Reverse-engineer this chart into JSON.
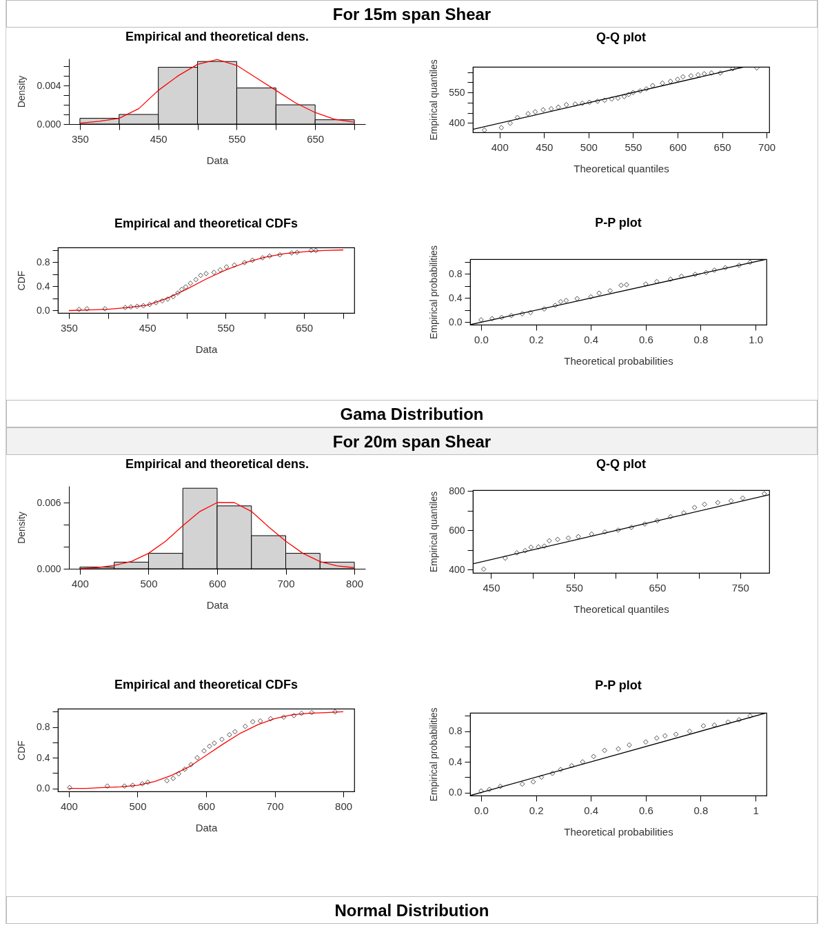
{
  "chart_data": [
    {
      "type": "histogram",
      "title": "Empirical and theoretical dens.",
      "xlabel": "Data",
      "ylabel": "Density",
      "annotations": [
        "For 15m span Shear"
      ],
      "xlim": [
        336,
        714
      ],
      "ylim": [
        0,
        0.0068
      ],
      "xticks": [
        350,
        {
          "value": 400,
          "label": null
        },
        450,
        {
          "value": 500,
          "label": null
        },
        550,
        {
          "value": 600,
          "label": null
        },
        650,
        {
          "value": 700,
          "label": null
        }
      ],
      "yticks": [
        {
          "value": 0,
          "label": "0.000"
        },
        {
          "value": 0.001,
          "label": null
        },
        {
          "value": 0.002,
          "label": null
        },
        {
          "value": 0.003,
          "label": null
        },
        0.004,
        {
          "value": 0.005,
          "label": null
        },
        {
          "value": 0.006,
          "label": null
        }
      ],
      "series": [
        {
          "type": "histogram",
          "color": "#d3d3d3",
          "bins": [
            350,
            400,
            450,
            500,
            550,
            600,
            650,
            700
          ],
          "values": [
            0.0006,
            0.001,
            0.0059,
            0.0065,
            0.00375,
            0.002,
            0.00045
          ]
        },
        {
          "type": "line",
          "color": "#ff0000",
          "x": [
            350,
            375,
            400,
            425,
            450,
            475,
            500,
            525,
            550,
            575,
            600,
            625,
            650,
            675,
            700
          ],
          "values": [
            0.0001,
            0.0003,
            0.0006,
            0.0016,
            0.0035,
            0.005,
            0.0062,
            0.0067,
            0.0061,
            0.0048,
            0.0035,
            0.0022,
            0.0012,
            0.0005,
            0.0002
          ]
        }
      ]
    },
    {
      "type": "scatter",
      "title": "Q-Q plot",
      "xlabel": "Theoretical quantiles",
      "ylabel": "Empirical quantiles",
      "xlim": [
        370,
        703
      ],
      "ylim": [
        354,
        676
      ],
      "xticks": [
        400,
        450,
        500,
        550,
        600,
        650,
        700
      ],
      "yticks": [
        400,
        {
          "value": 450,
          "label": null
        },
        {
          "value": 500,
          "label": null
        },
        550,
        {
          "value": 600,
          "label": null
        },
        {
          "value": 650,
          "label": null
        }
      ],
      "series": [
        {
          "type": "scatter",
          "marker": "diamond",
          "color": "#000000",
          "x": [
            383,
            402,
            412,
            420,
            432,
            440,
            449,
            458,
            466,
            475,
            485,
            493,
            501,
            510,
            518,
            526,
            533,
            540,
            545,
            550,
            558,
            565,
            572,
            583,
            592,
            600,
            606,
            615,
            623,
            630,
            638,
            648,
            662,
            689
          ],
          "values": [
            365,
            377,
            399,
            427,
            446,
            455,
            465,
            470,
            478,
            490,
            493,
            497,
            502,
            507,
            512,
            518,
            522,
            530,
            540,
            550,
            558,
            568,
            584,
            596,
            605,
            615,
            627,
            632,
            637,
            642,
            646,
            646,
            667,
            671
          ]
        },
        {
          "type": "line",
          "color": "#000000",
          "x": [
            370,
            675
          ],
          "values": [
            369,
            676
          ]
        }
      ]
    },
    {
      "type": "scatter",
      "title": "Empirical and theoretical CDFs",
      "xlabel": "Data",
      "ylabel": "CDF",
      "xlim": [
        336,
        714
      ],
      "ylim": [
        -0.04,
        1.04
      ],
      "xticks": [
        350,
        {
          "value": 400,
          "label": null
        },
        450,
        {
          "value": 500,
          "label": null
        },
        550,
        {
          "value": 600,
          "label": null
        },
        650,
        {
          "value": 700,
          "label": null
        }
      ],
      "yticks": [
        {
          "value": 0,
          "label": "0.0"
        },
        {
          "value": 0.2,
          "label": null
        },
        0.4,
        {
          "value": 0.6,
          "label": null
        },
        0.8,
        {
          "value": 1,
          "label": null
        }
      ],
      "series": [
        {
          "type": "line",
          "color": "#ff0000",
          "x": [
            350,
            375,
            400,
            425,
            450,
            475,
            500,
            525,
            550,
            575,
            600,
            625,
            650,
            675,
            700
          ],
          "values": [
            0,
            0.01,
            0.02,
            0.05,
            0.09,
            0.2,
            0.35,
            0.52,
            0.67,
            0.79,
            0.88,
            0.94,
            0.97,
            0.99,
            1
          ]
        },
        {
          "type": "scatter",
          "marker": "diamond",
          "color": "#000000",
          "x": [
            363,
            373,
            396,
            422,
            429,
            437,
            445,
            453,
            461,
            469,
            476,
            483,
            489,
            494,
            499,
            505,
            512,
            518,
            525,
            535,
            543,
            551,
            561,
            574,
            584,
            597,
            606,
            619,
            634,
            641,
            659,
            665
          ],
          "values": [
            0.02,
            0.03,
            0.03,
            0.05,
            0.06,
            0.07,
            0.08,
            0.1,
            0.13,
            0.16,
            0.19,
            0.23,
            0.29,
            0.35,
            0.39,
            0.45,
            0.51,
            0.58,
            0.61,
            0.63,
            0.67,
            0.72,
            0.75,
            0.79,
            0.83,
            0.87,
            0.9,
            0.92,
            0.95,
            0.96,
            0.99,
            0.99
          ]
        }
      ]
    },
    {
      "type": "scatter",
      "title": "P-P plot",
      "xlabel": "Theoretical probabilities",
      "ylabel": "Empirical probabilities",
      "annotations": [
        "Gama Distribution"
      ],
      "xlim": [
        -0.04,
        1.04
      ],
      "ylim": [
        -0.04,
        1.04
      ],
      "xticks": [
        {
          "value": 0,
          "label": "0.0"
        },
        0.2,
        0.4,
        0.6,
        0.8,
        {
          "value": 1,
          "label": "1.0"
        }
      ],
      "yticks": [
        {
          "value": 0,
          "label": "0.0"
        },
        {
          "value": 0.2,
          "label": null
        },
        0.4,
        {
          "value": 0.6,
          "label": null
        },
        0.8,
        {
          "value": 1,
          "label": null
        }
      ],
      "series": [
        {
          "type": "scatter",
          "marker": "diamond",
          "color": "#000000",
          "x": [
            0,
            0.04,
            0.075,
            0.11,
            0.15,
            0.18,
            0.23,
            0.27,
            0.29,
            0.31,
            0.35,
            0.4,
            0.43,
            0.47,
            0.51,
            0.53,
            0.6,
            0.64,
            0.69,
            0.73,
            0.78,
            0.82,
            0.85,
            0.89,
            0.94,
            0.98
          ],
          "values": [
            0.04,
            0.06,
            0.08,
            0.11,
            0.14,
            0.16,
            0.22,
            0.28,
            0.34,
            0.36,
            0.39,
            0.42,
            0.48,
            0.52,
            0.61,
            0.62,
            0.63,
            0.67,
            0.71,
            0.76,
            0.79,
            0.82,
            0.86,
            0.9,
            0.94,
            0.99
          ]
        },
        {
          "type": "line",
          "color": "#000000",
          "x": [
            -0.04,
            1.04
          ],
          "values": [
            -0.04,
            1.04
          ]
        }
      ]
    },
    {
      "type": "histogram",
      "title": "Empirical and theoretical dens.",
      "xlabel": "Data",
      "ylabel": "Density",
      "annotations": [
        "For 20m span Shear"
      ],
      "xlim": [
        384,
        816
      ],
      "ylim": [
        0,
        0.0075
      ],
      "xticks": [
        400,
        500,
        600,
        700,
        800
      ],
      "yticks": [
        {
          "value": 0,
          "label": "0.000"
        },
        {
          "value": 0.002,
          "label": null
        },
        {
          "value": 0.004,
          "label": null
        },
        0.006
      ],
      "series": [
        {
          "type": "histogram",
          "color": "#d3d3d3",
          "bins": [
            400,
            450,
            500,
            550,
            600,
            650,
            700,
            750,
            800
          ],
          "values": [
            0.00015,
            0.0006,
            0.0014,
            0.0073,
            0.0057,
            0.003,
            0.0014,
            0.0006
          ]
        },
        {
          "type": "line",
          "color": "#ff0000",
          "x": [
            400,
            425,
            450,
            475,
            500,
            525,
            550,
            575,
            600,
            625,
            650,
            675,
            700,
            725,
            750,
            775,
            800
          ],
          "values": [
            0,
            0.0001,
            0.0003,
            0.00066,
            0.0014,
            0.0025,
            0.0039,
            0.0052,
            0.006,
            0.006,
            0.0052,
            0.0038,
            0.0025,
            0.0014,
            0.00065,
            0.00026,
            0.0001
          ]
        }
      ]
    },
    {
      "type": "scatter",
      "title": "Q-Q plot",
      "xlabel": "Theoretical quantiles",
      "ylabel": "Empirical quantiles",
      "xlim": [
        428,
        785
      ],
      "ylim": [
        384,
        804
      ],
      "xticks": [
        450,
        {
          "value": 500,
          "label": null
        },
        550,
        {
          "value": 600,
          "label": null
        },
        650,
        {
          "value": 700,
          "label": null
        },
        750
      ],
      "yticks": [
        400,
        {
          "value": 500,
          "label": null
        },
        600,
        {
          "value": 700,
          "label": null
        },
        800
      ],
      "series": [
        {
          "type": "scatter",
          "marker": "diamond",
          "color": "#000000",
          "x": [
            441,
            467,
            481,
            491,
            498,
            507,
            514,
            520,
            530,
            543,
            555,
            571,
            587,
            603,
            619,
            635,
            650,
            666,
            682,
            695,
            707,
            723,
            739,
            753,
            779
          ],
          "values": [
            403,
            459,
            486,
            497,
            514,
            516,
            520,
            547,
            554,
            561,
            568,
            581,
            592,
            601,
            615,
            632,
            649,
            669,
            689,
            716,
            732,
            741,
            750,
            764,
            786
          ]
        },
        {
          "type": "line",
          "color": "#000000",
          "x": [
            428,
            785
          ],
          "values": [
            430,
            781
          ]
        }
      ]
    },
    {
      "type": "scatter",
      "title": "Empirical and theoretical CDFs",
      "xlabel": "Data",
      "ylabel": "CDF",
      "xlim": [
        384,
        816
      ],
      "ylim": [
        -0.04,
        1.04
      ],
      "xticks": [
        400,
        500,
        600,
        700,
        800
      ],
      "yticks": [
        {
          "value": 0,
          "label": "0.0"
        },
        {
          "value": 0.2,
          "label": null
        },
        0.4,
        {
          "value": 0.6,
          "label": null
        },
        0.8,
        {
          "value": 1,
          "label": null
        }
      ],
      "series": [
        {
          "type": "line",
          "color": "#ff0000",
          "x": [
            400,
            425,
            450,
            475,
            500,
            525,
            550,
            575,
            600,
            625,
            650,
            675,
            700,
            725,
            750,
            775,
            800
          ],
          "values": [
            0,
            0,
            0.01,
            0.02,
            0.04,
            0.09,
            0.17,
            0.28,
            0.43,
            0.58,
            0.72,
            0.83,
            0.91,
            0.96,
            0.98,
            0.99,
            1
          ]
        },
        {
          "type": "scatter",
          "marker": "diamond",
          "color": "#000000",
          "x": [
            401,
            456,
            481,
            493,
            507,
            515,
            543,
            552,
            560,
            569,
            578,
            587,
            597,
            605,
            612,
            623,
            634,
            642,
            657,
            668,
            679,
            694,
            713,
            728,
            739,
            754,
            788
          ],
          "values": [
            0.01,
            0.03,
            0.03,
            0.04,
            0.06,
            0.08,
            0.1,
            0.13,
            0.19,
            0.25,
            0.31,
            0.4,
            0.49,
            0.55,
            0.59,
            0.64,
            0.7,
            0.74,
            0.81,
            0.87,
            0.88,
            0.91,
            0.93,
            0.95,
            0.98,
            0.99,
            1
          ]
        }
      ]
    },
    {
      "type": "scatter",
      "title": "P-P plot",
      "xlabel": "Theoretical probabilities",
      "ylabel": "Empirical probabilities",
      "annotations": [
        "Normal Distribution"
      ],
      "xlim": [
        -0.04,
        1.04
      ],
      "ylim": [
        -0.04,
        1.04
      ],
      "xticks": [
        {
          "value": 0,
          "label": "0.0"
        },
        0.2,
        0.4,
        0.6,
        0.8,
        1
      ],
      "yticks": [
        {
          "value": 0,
          "label": "0.0"
        },
        {
          "value": 0.2,
          "label": null
        },
        0.4,
        {
          "value": 0.6,
          "label": null
        },
        0.8,
        {
          "value": 1,
          "label": null
        }
      ],
      "series": [
        {
          "type": "scatter",
          "marker": "diamond",
          "color": "#000000",
          "x": [
            0,
            0.03,
            0.07,
            0.15,
            0.19,
            0.22,
            0.26,
            0.29,
            0.33,
            0.37,
            0.41,
            0.45,
            0.5,
            0.54,
            0.6,
            0.64,
            0.67,
            0.71,
            0.76,
            0.81,
            0.85,
            0.9,
            0.94,
            0.98
          ],
          "values": [
            0.02,
            0.04,
            0.08,
            0.11,
            0.14,
            0.2,
            0.25,
            0.3,
            0.35,
            0.4,
            0.47,
            0.55,
            0.57,
            0.62,
            0.66,
            0.71,
            0.74,
            0.76,
            0.8,
            0.87,
            0.88,
            0.92,
            0.95,
            1
          ]
        },
        {
          "type": "line",
          "color": "#000000",
          "x": [
            -0.04,
            1.04
          ],
          "values": [
            -0.04,
            1.04
          ]
        }
      ]
    }
  ]
}
